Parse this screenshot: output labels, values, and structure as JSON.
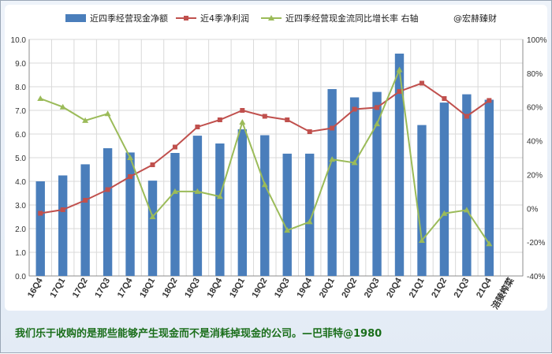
{
  "chart_data": {
    "type": "bar",
    "categories": [
      "16Q4",
      "17Q1",
      "17Q2",
      "17Q3",
      "17Q4",
      "18Q1",
      "18Q2",
      "18Q3",
      "18Q4",
      "19Q1",
      "19Q2",
      "19Q3",
      "19Q4",
      "20Q1",
      "20Q2",
      "20Q3",
      "20Q4",
      "21Q1",
      "21Q2",
      "21Q3",
      "21Q4",
      "涪陵榨菜"
    ],
    "series": [
      {
        "name": "近四季经营现金净额",
        "kind": "bar",
        "axis": "left",
        "color": "#4a7ebb",
        "values": [
          4.0,
          4.25,
          4.72,
          5.4,
          5.22,
          4.03,
          5.2,
          5.93,
          5.6,
          6.2,
          5.95,
          5.17,
          5.17,
          7.9,
          7.55,
          7.78,
          9.4,
          6.38,
          7.33,
          7.68,
          7.45,
          null
        ]
      },
      {
        "name": "近4季净利润",
        "kind": "line",
        "axis": "left",
        "color": "#c0504d",
        "values": [
          2.65,
          2.8,
          3.2,
          3.65,
          4.2,
          4.7,
          5.45,
          6.3,
          6.6,
          7.0,
          6.75,
          6.6,
          6.1,
          6.25,
          7.05,
          7.12,
          7.8,
          8.15,
          7.5,
          6.75,
          7.42,
          null
        ]
      },
      {
        "name": "近四季经营现金流同比增长率 右轴",
        "kind": "line",
        "axis": "right",
        "color": "#9bbb59",
        "values": [
          65,
          60,
          52,
          56,
          30,
          -5,
          10,
          10,
          7,
          51,
          14,
          -13,
          -8,
          29,
          27,
          50,
          82,
          -19,
          -3,
          -1,
          -21,
          null
        ]
      }
    ],
    "legend_extra": "@宏赫臻财",
    "left_axis": {
      "min": 0,
      "max": 10,
      "step": 1,
      "ticks": [
        "0.0",
        "1.0",
        "2.0",
        "3.0",
        "4.0",
        "5.0",
        "6.0",
        "7.0",
        "8.0",
        "9.0",
        "10.0"
      ]
    },
    "right_axis": {
      "min": -40,
      "max": 100,
      "step": 20,
      "ticks": [
        "-40%",
        "-20%",
        "0%",
        "20%",
        "40%",
        "60%",
        "80%",
        "100%"
      ]
    },
    "grid": true,
    "legend_position": "top"
  },
  "footer_quote": "我们乐于收购的是那些能够产生现金而不是消耗掉现金的公司。—巴菲特@1980"
}
